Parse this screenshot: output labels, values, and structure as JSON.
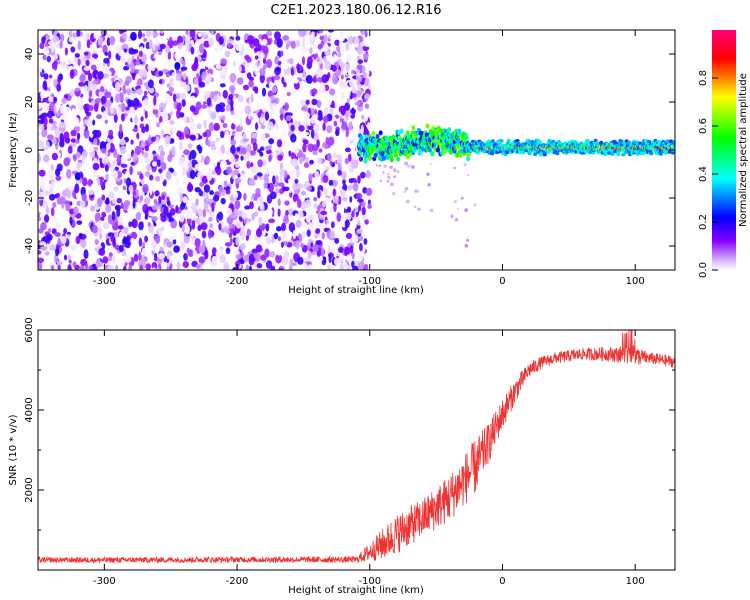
{
  "chart_data": [
    {
      "type": "heatmap",
      "title": "C2E1.2023.180.06.12.R16",
      "xlabel": "Height of straight line (km)",
      "ylabel": "Frequency (Hz)",
      "xlim": [
        -350,
        130
      ],
      "ylim": [
        -50,
        50
      ],
      "x_ticks": [
        -300,
        -200,
        -100,
        0,
        100
      ],
      "y_ticks": [
        -40,
        -20,
        0,
        20,
        40
      ],
      "colorbar": {
        "label": "Normalized spectral amplitude",
        "range": [
          0,
          1
        ],
        "ticks": [
          "0.0",
          "0.2",
          "0.4",
          "0.6",
          "0.8"
        ],
        "colormap": [
          "#ffffff",
          "#cc99ff",
          "#7a00ff",
          "#0000ff",
          "#00ffff",
          "#00ff00",
          "#ffff00",
          "#ff0000",
          "#ff0088"
        ]
      },
      "noise_region": {
        "x_range": [
          -350,
          -100
        ],
        "freq_range": [
          -50,
          50
        ],
        "amplitude": [
          0.0,
          0.2
        ]
      },
      "signal_ridge": [
        {
          "x": -107,
          "freq": 0
        },
        {
          "x": -100,
          "freq": 2
        },
        {
          "x": -90,
          "freq": 1
        },
        {
          "x": -80,
          "freq": 2
        },
        {
          "x": -70,
          "freq": 3
        },
        {
          "x": -60,
          "freq": 4
        },
        {
          "x": -50,
          "freq": 4
        },
        {
          "x": -40,
          "freq": 4
        },
        {
          "x": -30,
          "freq": 3
        },
        {
          "x": -20,
          "freq": 1
        },
        {
          "x": 0,
          "freq": 1
        },
        {
          "x": 50,
          "freq": 1
        },
        {
          "x": 100,
          "freq": 1
        },
        {
          "x": 130,
          "freq": 1
        }
      ],
      "hotspots": [
        {
          "x": -245,
          "freq": 35,
          "amplitude": 0.2
        },
        {
          "x": -320,
          "freq": -11,
          "amplitude": 0.2
        }
      ]
    },
    {
      "type": "line",
      "xlabel": "Height of straight line (km)",
      "ylabel": "SNR (10 * v/v)",
      "xlim": [
        -350,
        130
      ],
      "ylim": [
        0,
        6000
      ],
      "x_ticks": [
        -300,
        -200,
        -100,
        0,
        100
      ],
      "y_ticks": [
        2000,
        4000,
        6000
      ],
      "line_color": "#ee3333",
      "envelope": {
        "x": [
          -350,
          -300,
          -200,
          -110,
          -90,
          -80,
          -60,
          -40,
          -20,
          -10,
          0,
          10,
          20,
          30,
          40,
          60,
          80,
          100,
          110,
          130
        ],
        "y": [
          250,
          250,
          260,
          260,
          650,
          900,
          1300,
          1800,
          2600,
          3200,
          3900,
          4500,
          5000,
          5200,
          5300,
          5400,
          5400,
          5350,
          5300,
          5200
        ],
        "noise": [
          70,
          70,
          70,
          80,
          400,
          500,
          500,
          600,
          700,
          500,
          400,
          300,
          200,
          150,
          150,
          150,
          180,
          250,
          150,
          150
        ]
      }
    }
  ]
}
